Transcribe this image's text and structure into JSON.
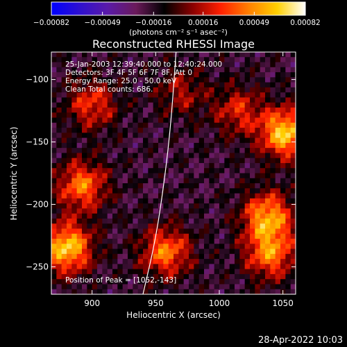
{
  "chart_data": {
    "type": "heatmap",
    "title": "Reconstructed RHESSI Image",
    "xlabel": "Heliocentric X (arcsec)",
    "ylabel": "Heliocentric Y (arcsec)",
    "xlim": [
      868,
      1060
    ],
    "ylim": [
      -272,
      -78
    ],
    "x_ticks": [
      900,
      950,
      1000,
      1050
    ],
    "x_tick_labels": [
      "900",
      "950",
      "1000",
      "1050"
    ],
    "y_ticks": [
      -100,
      -150,
      -200,
      -250
    ],
    "y_tick_labels": [
      "−100",
      "−150",
      "−200",
      "−250"
    ],
    "colorbar": {
      "range": [
        -0.00082,
        0.00082
      ],
      "ticks": [
        -0.00082,
        -0.00049,
        -0.00016,
        0.00016,
        0.00049,
        0.00082
      ],
      "tick_labels": [
        "−0.00082",
        "−0.00049",
        "−0.00016",
        "0.00016",
        "0.00049",
        "0.00082"
      ],
      "unit_label": "(photons cm⁻² s⁻¹ asec⁻²)",
      "colormap": [
        "#0000ff",
        "#2e10d0",
        "#5a1aa8",
        "#6a1a5a",
        "#000000",
        "#8a0000",
        "#ff2000",
        "#ff8000",
        "#ffd000",
        "#ffffff"
      ]
    },
    "annotations": [
      "25-Jan-2003 12:39:40.000 to 12:40:24.000",
      "Detectors: 3F 4F 5F 6F 7F 8F, Att 0",
      "Energy Range: 25.0 - 50.0 keV",
      "Clean     Total counts: 686."
    ],
    "peak_label": "Position of Peak = [1052,-143]",
    "peak": {
      "x": 1052,
      "y": -143
    },
    "limb_curve": [
      [
        940,
        -272
      ],
      [
        950,
        -228
      ],
      [
        957,
        -180
      ],
      [
        962,
        -135
      ],
      [
        966,
        -78
      ]
    ],
    "emission_regions": [
      {
        "x": 880,
        "y": -235,
        "value": 0.00082
      },
      {
        "x": 892,
        "y": -185,
        "value": 0.0006
      },
      {
        "x": 900,
        "y": -120,
        "value": 0.00045
      },
      {
        "x": 958,
        "y": -238,
        "value": 0.0006
      },
      {
        "x": 1038,
        "y": -210,
        "value": 0.0007
      },
      {
        "x": 1040,
        "y": -240,
        "value": 0.0006
      },
      {
        "x": 1052,
        "y": -143,
        "value": 0.00082
      },
      {
        "x": 1015,
        "y": -125,
        "value": 0.0004
      },
      {
        "x": 970,
        "y": -110,
        "value": 0.0003
      }
    ]
  },
  "footer": {
    "timestamp": "28-Apr-2022 10:03"
  }
}
